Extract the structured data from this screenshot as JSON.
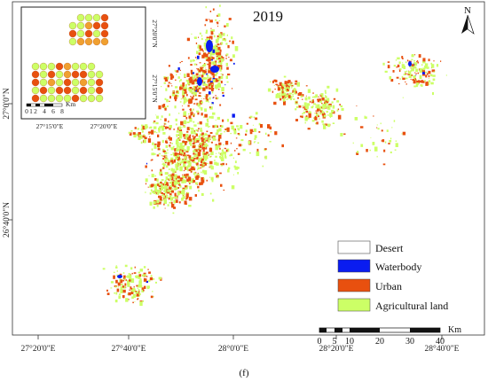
{
  "map": {
    "title": "2019",
    "panel_label": "(f)",
    "north_label": "N",
    "x_ticks": [
      "27°20'0\"E",
      "27°40'0\"E",
      "28°0'0\"E",
      "28°20'0\"E",
      "28°40'0\"E"
    ],
    "y_ticks": [
      "27°0'0\"N",
      "26°40'0\"N"
    ]
  },
  "legend": {
    "items": [
      {
        "label": "Desert",
        "color": "#ffffff"
      },
      {
        "label": "Waterbody",
        "color": "#0a1cf0"
      },
      {
        "label": "Urban",
        "color": "#e8500f"
      },
      {
        "label": "Agricultural land",
        "color": "#ccff66"
      }
    ]
  },
  "scalebar": {
    "labels": [
      "0",
      "5",
      "10",
      "20",
      "30",
      "40"
    ],
    "unit": "Km"
  },
  "inset": {
    "x_ticks": [
      "27°15'0\"E",
      "27°20'0\"E"
    ],
    "y_ticks": [
      "27°20'0\"N",
      "27°15'0\"N"
    ],
    "scale_labels": [
      "0",
      "1",
      "2",
      "4",
      "6",
      "8"
    ],
    "scale_unit": "Km"
  }
}
